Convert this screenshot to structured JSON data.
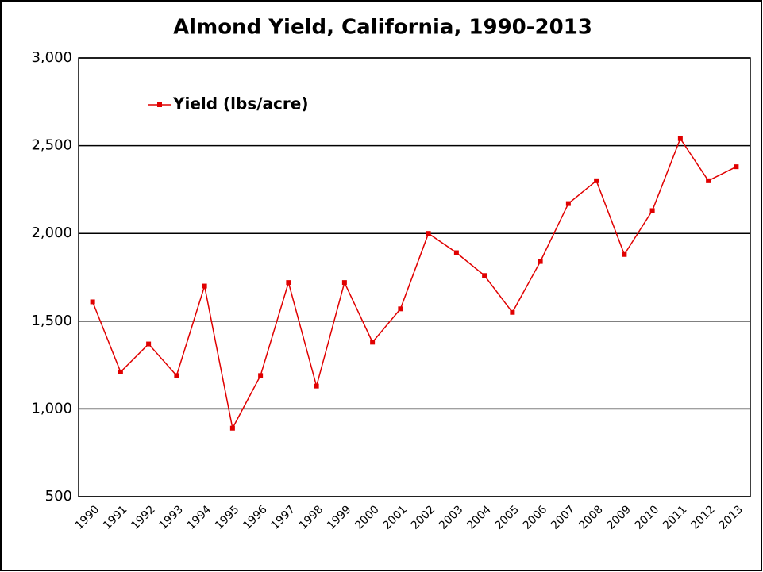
{
  "chart_data": {
    "type": "line",
    "title": "Almond Yield, California, 1990-2013",
    "categories": [
      "1990",
      "1991",
      "1992",
      "1993",
      "1994",
      "1995",
      "1996",
      "1997",
      "1998",
      "1999",
      "2000",
      "2001",
      "2002",
      "2003",
      "2004",
      "2005",
      "2006",
      "2007",
      "2008",
      "2009",
      "2010",
      "2011",
      "2012",
      "2013"
    ],
    "series": [
      {
        "name": "Yield (lbs/acre)",
        "color": "#e00000",
        "values": [
          1610,
          1210,
          1370,
          1190,
          1700,
          890,
          1190,
          1720,
          1130,
          1720,
          1380,
          1570,
          2000,
          1890,
          1760,
          1550,
          1840,
          2170,
          2300,
          1880,
          2130,
          2540,
          2300,
          2380
        ]
      }
    ],
    "ylim": [
      500,
      3000
    ],
    "yticks": [
      500,
      {
        "value": 1000,
        "label": "1,000"
      },
      {
        "value": 1500,
        "label": "1,500"
      },
      {
        "value": 2000,
        "label": "2,000"
      },
      {
        "value": 2500,
        "label": "2,500"
      },
      {
        "value": 3000,
        "label": "3,000"
      }
    ],
    "grid": true,
    "legend": "top-left"
  }
}
